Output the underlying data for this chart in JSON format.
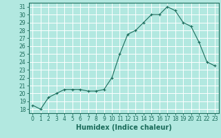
{
  "x": [
    0,
    1,
    2,
    3,
    4,
    5,
    6,
    7,
    8,
    9,
    10,
    11,
    12,
    13,
    14,
    15,
    16,
    17,
    18,
    19,
    20,
    21,
    22,
    23
  ],
  "y": [
    18.5,
    18.0,
    19.5,
    20.0,
    20.5,
    20.5,
    20.5,
    20.3,
    20.3,
    20.5,
    22.0,
    25.0,
    27.5,
    28.0,
    29.0,
    30.0,
    30.0,
    31.0,
    30.5,
    29.0,
    28.5,
    26.5,
    24.0,
    23.5
  ],
  "ylim": [
    17.5,
    31.5
  ],
  "yticks": [
    18,
    19,
    20,
    21,
    22,
    23,
    24,
    25,
    26,
    27,
    28,
    29,
    30,
    31
  ],
  "xticks": [
    0,
    1,
    2,
    3,
    4,
    5,
    6,
    7,
    8,
    9,
    10,
    11,
    12,
    13,
    14,
    15,
    16,
    17,
    18,
    19,
    20,
    21,
    22,
    23
  ],
  "xlabel": "Humidex (Indice chaleur)",
  "line_color": "#1a6b5a",
  "marker": "+",
  "bg_color": "#b2e8e0",
  "grid_color": "#d4f0ec",
  "tick_color": "#1a6b5a",
  "label_fontsize": 5.5,
  "xlabel_fontsize": 7,
  "spine_color": "#1a6b5a"
}
